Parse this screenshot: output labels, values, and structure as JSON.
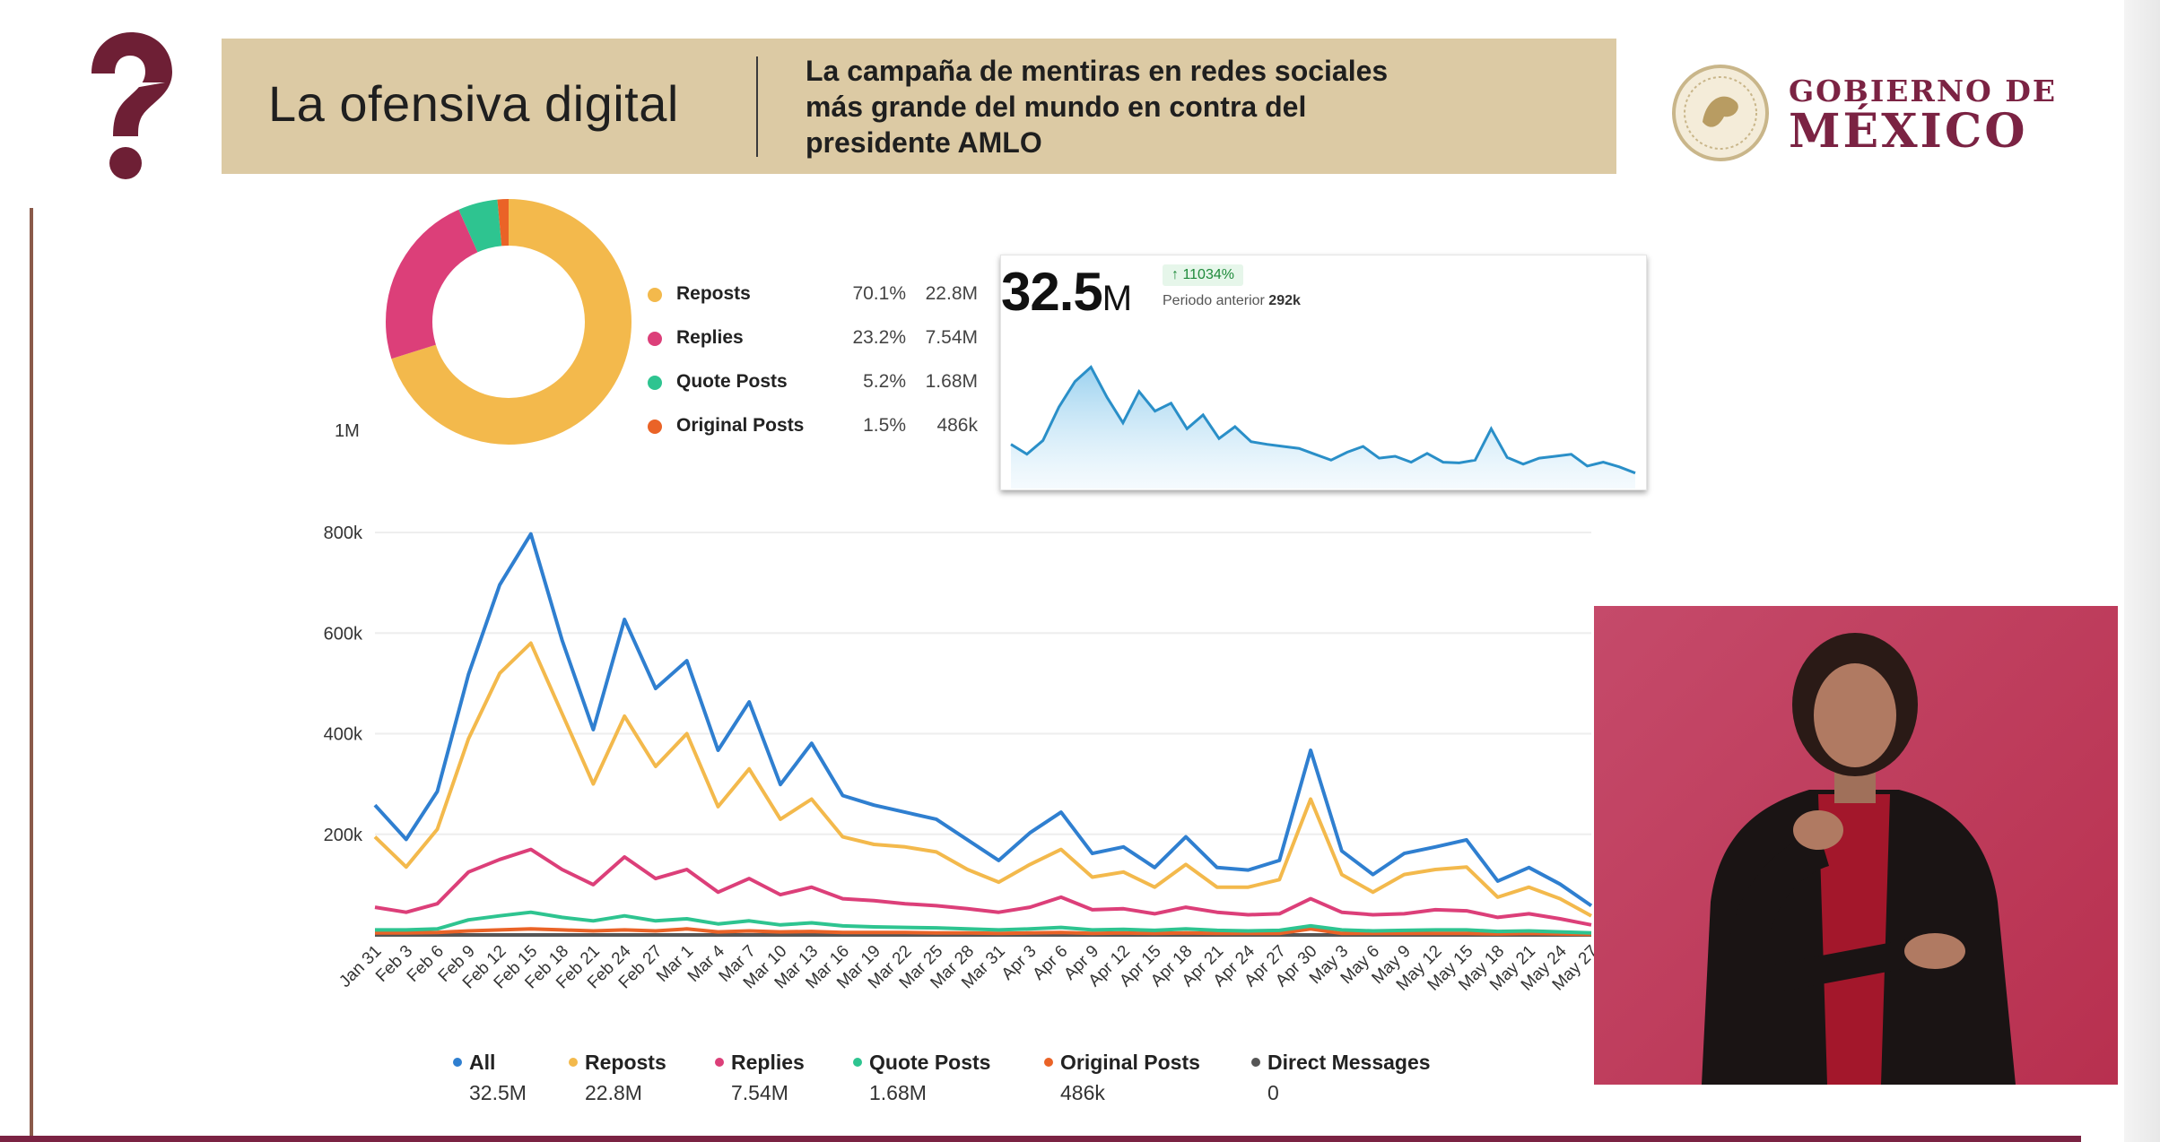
{
  "header": {
    "title": "La ofensiva digital",
    "subtitle_lines": [
      "La campaña de mentiras en redes sociales",
      "más grande del mundo en contra del",
      "presidente AMLO"
    ],
    "logo": {
      "line1": "GOBIERNO DE",
      "line2": "MÉXICO"
    }
  },
  "colors": {
    "all": "#2f7fd0",
    "reposts": "#f3b94c",
    "replies": "#dc3f79",
    "quote_posts": "#2ec490",
    "original_posts": "#ea6327",
    "direct_messages": "#555555",
    "brand": "#7b2343"
  },
  "breakdown": {
    "scale_label": "1M",
    "items": [
      {
        "label": "Reposts",
        "pct": "70.1%",
        "value": "22.8M",
        "share": 70.1,
        "color": "#f3b94c"
      },
      {
        "label": "Replies",
        "pct": "23.2%",
        "value": "7.54M",
        "share": 23.2,
        "color": "#dc3f79"
      },
      {
        "label": "Quote Posts",
        "pct": "5.2%",
        "value": "1.68M",
        "share": 5.2,
        "color": "#2ec490"
      },
      {
        "label": "Original Posts",
        "pct": "1.5%",
        "value": "486k",
        "share": 1.5,
        "color": "#ea6327"
      }
    ]
  },
  "summary": {
    "total_number": "32.5",
    "total_unit": "M",
    "change": "↑ 11034%",
    "prev_label": "Periodo anterior",
    "prev_value": "292k"
  },
  "chart_data": {
    "type": "line",
    "ylabel": "",
    "xlabel": "",
    "ylim": [
      0,
      800000
    ],
    "yticks": [
      "800k",
      "600k",
      "400k",
      "200k"
    ],
    "ytick_values": [
      800000,
      600000,
      400000,
      200000
    ],
    "x": [
      "Jan 31",
      "Feb 3",
      "Feb 6",
      "Feb 9",
      "Feb 12",
      "Feb 15",
      "Feb 18",
      "Feb 21",
      "Feb 24",
      "Feb 27",
      "Mar 1",
      "Mar 4",
      "Mar 7",
      "Mar 10",
      "Mar 13",
      "Mar 16",
      "Mar 19",
      "Mar 22",
      "Mar 25",
      "Mar 28",
      "Mar 31",
      "Apr 3",
      "Apr 6",
      "Apr 9",
      "Apr 12",
      "Apr 15",
      "Apr 18",
      "Apr 21",
      "Apr 24",
      "Apr 27",
      "Apr 30",
      "May 3",
      "May 6",
      "May 9",
      "May 12",
      "May 15",
      "May 18",
      "May 21",
      "May 24",
      "May 27"
    ],
    "series": [
      {
        "key": "all",
        "name": "All",
        "total": "32.5M",
        "values": [
          258,
          190,
          285,
          518,
          696,
          797,
          586,
          408,
          627,
          490,
          545,
          367,
          463,
          299,
          381,
          277,
          258,
          244,
          230,
          189,
          148,
          203,
          244,
          162,
          175,
          134,
          195,
          134,
          129,
          148,
          367,
          167,
          120,
          162,
          175,
          189,
          107,
          134,
          101,
          58
        ]
      },
      {
        "key": "reposts",
        "name": "Reposts",
        "total": "22.8M",
        "values": [
          195,
          135,
          210,
          390,
          520,
          580,
          440,
          300,
          435,
          335,
          400,
          255,
          330,
          230,
          270,
          195,
          180,
          175,
          165,
          130,
          105,
          140,
          170,
          115,
          125,
          95,
          140,
          95,
          95,
          110,
          270,
          120,
          85,
          120,
          130,
          135,
          75,
          95,
          72,
          38
        ]
      },
      {
        "key": "replies",
        "name": "Replies",
        "total": "7.54M",
        "values": [
          55,
          45,
          62,
          125,
          150,
          170,
          130,
          100,
          155,
          112,
          130,
          85,
          112,
          80,
          95,
          72,
          68,
          62,
          58,
          52,
          45,
          55,
          75,
          50,
          52,
          42,
          55,
          45,
          40,
          42,
          72,
          45,
          40,
          42,
          50,
          48,
          35,
          42,
          32,
          20
        ]
      },
      {
        "key": "quote_posts",
        "name": "Quote Posts",
        "total": "1.68M",
        "values": [
          10,
          10,
          12,
          30,
          38,
          45,
          35,
          28,
          38,
          28,
          32,
          22,
          28,
          20,
          24,
          18,
          16,
          15,
          14,
          12,
          10,
          12,
          15,
          10,
          11,
          9,
          12,
          9,
          8,
          9,
          18,
          10,
          8,
          9,
          10,
          10,
          7,
          8,
          6,
          4
        ]
      },
      {
        "key": "original_posts",
        "name": "Original Posts",
        "total": "486k",
        "values": [
          4,
          4,
          5,
          8,
          10,
          12,
          10,
          8,
          10,
          8,
          12,
          6,
          8,
          6,
          7,
          5,
          5,
          5,
          4,
          4,
          3,
          4,
          5,
          3,
          4,
          3,
          4,
          3,
          3,
          3,
          12,
          3,
          3,
          3,
          3,
          3,
          2,
          3,
          2,
          1
        ]
      },
      {
        "key": "direct_messages",
        "name": "Direct Messages",
        "total": "0",
        "values": [
          0,
          0,
          0,
          0,
          0,
          0,
          0,
          0,
          0,
          0,
          0,
          0,
          0,
          0,
          0,
          0,
          0,
          0,
          0,
          0,
          0,
          0,
          0,
          0,
          0,
          0,
          0,
          0,
          0,
          0,
          0,
          0,
          0,
          0,
          0,
          0,
          0,
          0,
          0,
          0
        ]
      }
    ],
    "value_unit": "thousands",
    "grid": true,
    "legend_position": "bottom"
  }
}
